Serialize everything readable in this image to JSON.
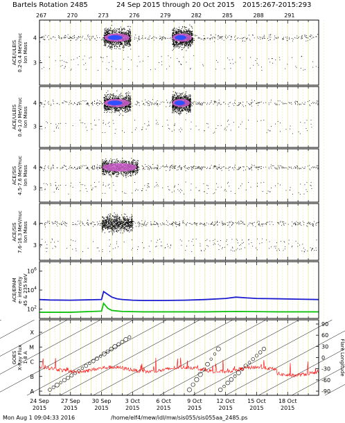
{
  "header": {
    "bartels": "Bartels Rotation 2485",
    "date_range": "24 Sep 2015 through 20 Oct 2015",
    "doy_range": "2015:267-2015:293"
  },
  "footer": {
    "timestamp": "Mon Aug  1 09:04:33 2016",
    "path": "/home/elf4/mew/idl/mw/sis055/sis055aa_2485.ps"
  },
  "colors": {
    "grid_day": "#e8e8a0",
    "density_low": "#000000",
    "density_mid": "#d060d0",
    "density_high": "#3050ff",
    "epam_e1": "#1a1ad0",
    "epam_e2": "#10c010",
    "xray": "#ff0000"
  },
  "chart_data": [
    {
      "type": "scatter",
      "ylabel": [
        "ACE/ULEIS",
        "0.2-0.4 MeV/nuc",
        "Ion Mass"
      ],
      "yticks": [
        3,
        4
      ],
      "ylim": [
        2.1,
        4.7
      ],
      "xlim": [
        267,
        294
      ],
      "bursts": [
        {
          "x_start": 273.2,
          "x_end": 275.8,
          "mass": 4.0,
          "intensity": "high"
        },
        {
          "x_start": 279.8,
          "x_end": 281.8,
          "mass": 4.0,
          "intensity": "high"
        },
        {
          "x_start": 267.0,
          "x_end": 294.0,
          "mass": 4.0,
          "intensity": "low"
        }
      ]
    },
    {
      "type": "scatter",
      "ylabel": [
        "ACE/ULEIS",
        "0.4-1.0 MeV/nuc",
        "Ion Mass"
      ],
      "yticks": [
        3,
        4
      ],
      "ylim": [
        2.1,
        4.7
      ],
      "xlim": [
        267,
        294
      ],
      "bursts": [
        {
          "x_start": 273.2,
          "x_end": 275.8,
          "mass": 4.0,
          "intensity": "high"
        },
        {
          "x_start": 279.8,
          "x_end": 281.6,
          "mass": 4.0,
          "intensity": "high"
        }
      ]
    },
    {
      "type": "scatter",
      "ylabel": [
        "ACE/SIS",
        "4.5-7.6 MeV/nuc",
        "Ion Mass"
      ],
      "yticks": [
        3,
        4
      ],
      "ylim": [
        2.3,
        4.9
      ],
      "xlim": [
        267,
        294
      ],
      "bursts": [
        {
          "x_start": 273.0,
          "x_end": 276.5,
          "mass": 4.0,
          "intensity": "mid"
        }
      ]
    },
    {
      "type": "scatter",
      "ylabel": [
        "ACE/SIS",
        "7.6-16.3 MeV/nuc",
        "Ion Mass"
      ],
      "yticks": [
        3,
        4
      ],
      "ylim": [
        2.3,
        4.9
      ],
      "xlim": [
        267,
        294
      ],
      "bursts": [
        {
          "x_start": 273.0,
          "x_end": 276.0,
          "mass": 4.0,
          "intensity": "low"
        }
      ]
    },
    {
      "type": "line",
      "ylabel": [
        "ACE/EPAM",
        "e- intensity",
        "45 & 235 keV"
      ],
      "ylog": true,
      "yticks": [
        "10^2",
        "10^4",
        "10^6"
      ],
      "xlim": [
        267,
        294
      ],
      "series": [
        {
          "color": "#1a1ad0",
          "x": [
            267,
            268,
            270,
            272,
            273,
            273.2,
            273.6,
            274,
            274.5,
            275,
            276,
            277,
            279,
            281,
            283,
            285,
            286,
            287,
            288,
            290,
            292,
            294
          ],
          "y": [
            1000,
            900,
            850,
            950,
            1000,
            7000,
            3500,
            1800,
            1200,
            1000,
            850,
            800,
            800,
            850,
            1000,
            1300,
            1800,
            1500,
            1300,
            1200,
            1100,
            1000
          ]
        },
        {
          "color": "#10c010",
          "x": [
            267,
            270,
            273,
            273.2,
            273.6,
            274,
            275,
            277,
            280,
            283,
            286,
            290,
            294
          ],
          "y": [
            45,
            45,
            60,
            400,
            120,
            70,
            55,
            50,
            50,
            50,
            55,
            50,
            50
          ]
        }
      ]
    },
    {
      "type": "line",
      "ylabel": [
        "GOES",
        "X-Ray Flux",
        "1-8 A"
      ],
      "yticks": [
        "A",
        "B",
        "C",
        "M",
        "X"
      ],
      "y2label": "Flare Longitude",
      "y2ticks": [
        90,
        60,
        30,
        0,
        -30,
        -60,
        -90
      ],
      "xlim": [
        267,
        294
      ],
      "xtick_labels": [
        {
          "x": 267,
          "label": "24 Sep",
          "year": "2015"
        },
        {
          "x": 270,
          "label": "27 Sep",
          "year": "2015"
        },
        {
          "x": 273,
          "label": "30 Sep",
          "year": "2015"
        },
        {
          "x": 276,
          "label": "3 Oct",
          "year": "2015"
        },
        {
          "x": 279,
          "label": "6 Oct",
          "year": "2015"
        },
        {
          "x": 282,
          "label": "9 Oct",
          "year": "2015"
        },
        {
          "x": 285,
          "label": "12 Oct",
          "year": "2015"
        },
        {
          "x": 288,
          "label": "15 Oct",
          "year": "2015"
        },
        {
          "x": 291,
          "label": "18 Oct",
          "year": "2015"
        }
      ]
    }
  ],
  "top_doy_ticks": [
    267,
    270,
    273,
    276,
    279,
    282,
    285,
    288,
    291
  ]
}
